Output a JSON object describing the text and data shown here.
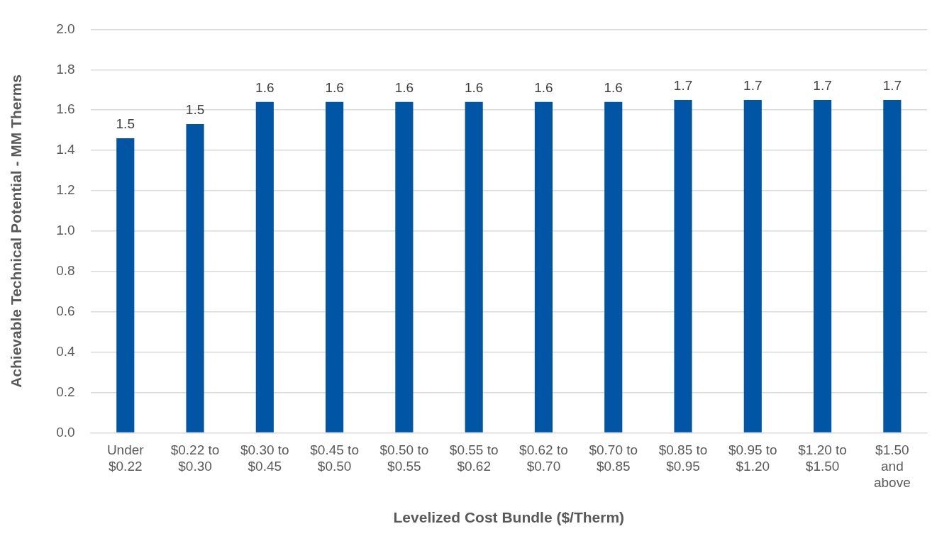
{
  "chart_data": {
    "type": "bar",
    "xlabel": "Levelized Cost Bundle ($/Therm)",
    "ylabel": "Achievable Technical Potential - MM Therms",
    "categories": [
      "Under $0.22",
      "$0.22 to $0.30",
      "$0.30 to $0.45",
      "$0.45 to $0.50",
      "$0.50 to $0.55",
      "$0.55 to $0.62",
      "$0.62 to $0.70",
      "$0.70 to $0.85",
      "$0.85 to $0.95",
      "$0.95 to $1.20",
      "$1.20 to $1.50",
      "$1.50 and above"
    ],
    "values": [
      1.46,
      1.53,
      1.64,
      1.64,
      1.64,
      1.64,
      1.64,
      1.64,
      1.65,
      1.65,
      1.65,
      1.65
    ],
    "value_labels": [
      "1.5",
      "1.5",
      "1.6",
      "1.6",
      "1.6",
      "1.6",
      "1.6",
      "1.6",
      "1.7",
      "1.7",
      "1.7",
      "1.7"
    ],
    "color": "#0055a5",
    "ylim": [
      0,
      2
    ],
    "yticks": [
      {
        "value": 0,
        "label": "0.0"
      },
      {
        "value": 0.2,
        "label": "0.2"
      },
      {
        "value": 0.4,
        "label": "0.4"
      },
      {
        "value": 0.6,
        "label": "0.6"
      },
      {
        "value": 0.8,
        "label": "0.8"
      },
      {
        "value": 1,
        "label": "1.0"
      },
      {
        "value": 1.2,
        "label": "1.2"
      },
      {
        "value": 1.4,
        "label": "1.4"
      },
      {
        "value": 1.6,
        "label": "1.6"
      },
      {
        "value": 1.8,
        "label": "1.8"
      },
      {
        "value": 2,
        "label": "2.0"
      }
    ],
    "grid": "y",
    "legend": false
  }
}
